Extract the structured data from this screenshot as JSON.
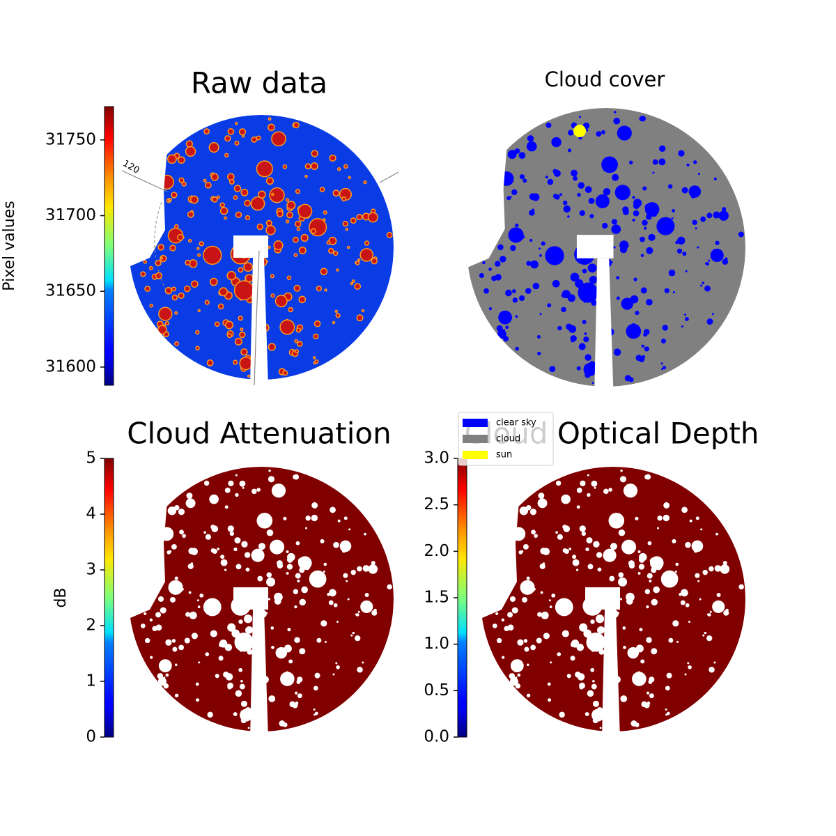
{
  "chart_data": [
    {
      "type": "image",
      "title": "Raw data",
      "ylabel": "Pixel values",
      "colormap": "jet",
      "ylim": [
        31588,
        31772
      ],
      "yticks": [
        31600,
        31650,
        31700,
        31750
      ],
      "annotations": [
        "120"
      ]
    },
    {
      "type": "classmap",
      "title": "Cloud cover",
      "series": [
        {
          "name": "clear sky",
          "color": "#0000ff"
        },
        {
          "name": "cloud",
          "color": "#808080"
        },
        {
          "name": "sun",
          "color": "#ffff00"
        }
      ]
    },
    {
      "type": "image",
      "title": "Cloud Attenuation",
      "ylabel": "dB",
      "colormap": "jet",
      "ylim": [
        0,
        5
      ],
      "yticks": [
        0,
        1,
        2,
        3,
        4,
        5
      ]
    },
    {
      "type": "image",
      "title": "Cloud Optical Depth",
      "colormap": "jet",
      "ylim": [
        0,
        3
      ],
      "yticks": [
        {
          "value": 0,
          "label": "0.0"
        },
        {
          "value": 0.5,
          "label": "0.5"
        },
        {
          "value": 1,
          "label": "1.0"
        },
        {
          "value": 1.5,
          "label": "1.5"
        },
        {
          "value": 2,
          "label": "2.0"
        },
        {
          "value": 2.5,
          "label": "2.5"
        },
        {
          "value": 3,
          "label": "3.0"
        }
      ]
    }
  ]
}
